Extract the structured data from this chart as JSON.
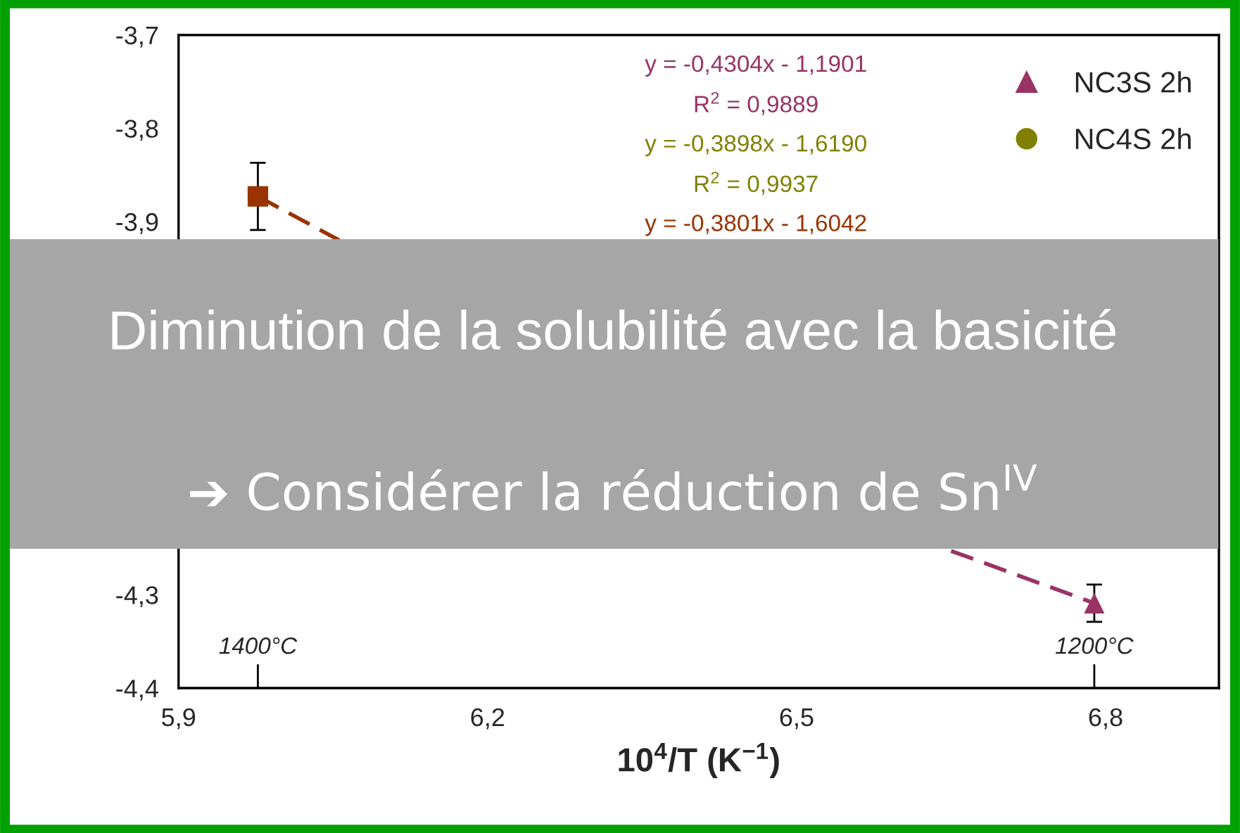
{
  "chart_data": {
    "type": "scatter",
    "xlabel": "10$^{4}$/T (K$^{−1}$)",
    "xlim": [
      5.9,
      6.91
    ],
    "xticks": [
      {
        "value": 5.9,
        "label": "5,9"
      },
      {
        "value": 6.2,
        "label": "6,2"
      },
      {
        "value": 6.5,
        "label": "6,5"
      },
      {
        "value": 6.8,
        "label": "6,8"
      }
    ],
    "ylim": [
      -4.4,
      -3.7
    ],
    "yticks": [
      {
        "value": -4.4,
        "label": "-4,4"
      },
      {
        "value": -4.3,
        "label": "-4,3"
      },
      {
        "value": -3.9,
        "label": "-3,9"
      },
      {
        "value": -3.8,
        "label": "-3,8"
      },
      {
        "value": -3.7,
        "label": "-3,7"
      }
    ],
    "series": [
      {
        "name": "NC3S 2h",
        "color": "#993366",
        "marker": "triangle",
        "x": [
          6.789
        ],
        "values": [
          -4.309
        ],
        "errors": [
          0.02
        ]
      },
      {
        "name": "NC4S 2h",
        "color": "#808000",
        "marker": "circle"
      },
      {
        "type": "line",
        "color": "#993366",
        "line_style": "dashed",
        "marker": "none",
        "x": [
          6.65,
          6.789
        ],
        "values": [
          -4.253,
          -4.309
        ]
      },
      {
        "color": "#993300",
        "marker": "square",
        "x": [
          5.977
        ],
        "values": [
          -3.873
        ],
        "errors": [
          0.036
        ]
      },
      {
        "type": "line",
        "color": "#993300",
        "line_style": "dashed",
        "marker": "none",
        "x": [
          5.977,
          6.056
        ],
        "values": [
          -3.873,
          -3.92
        ]
      }
    ],
    "ref_lines": [
      {
        "axis": "x",
        "value": 5.977,
        "label": "1400°C"
      },
      {
        "axis": "x",
        "value": 6.789,
        "label": "1200°C"
      }
    ],
    "annotations": [
      "y = -0,4304x - 1,1901",
      "R$^{2}$ = 0,9889",
      "y = -0,3898x - 1,6190",
      "R$^{2}$ = 0,9937",
      "y = -0,3801x - 1,6042",
      "Diminution de la solubilité avec la basicité",
      "➔ Considérer la réduction de Sn$^{IV}$"
    ],
    "legend": "top right",
    "grid": false
  }
}
